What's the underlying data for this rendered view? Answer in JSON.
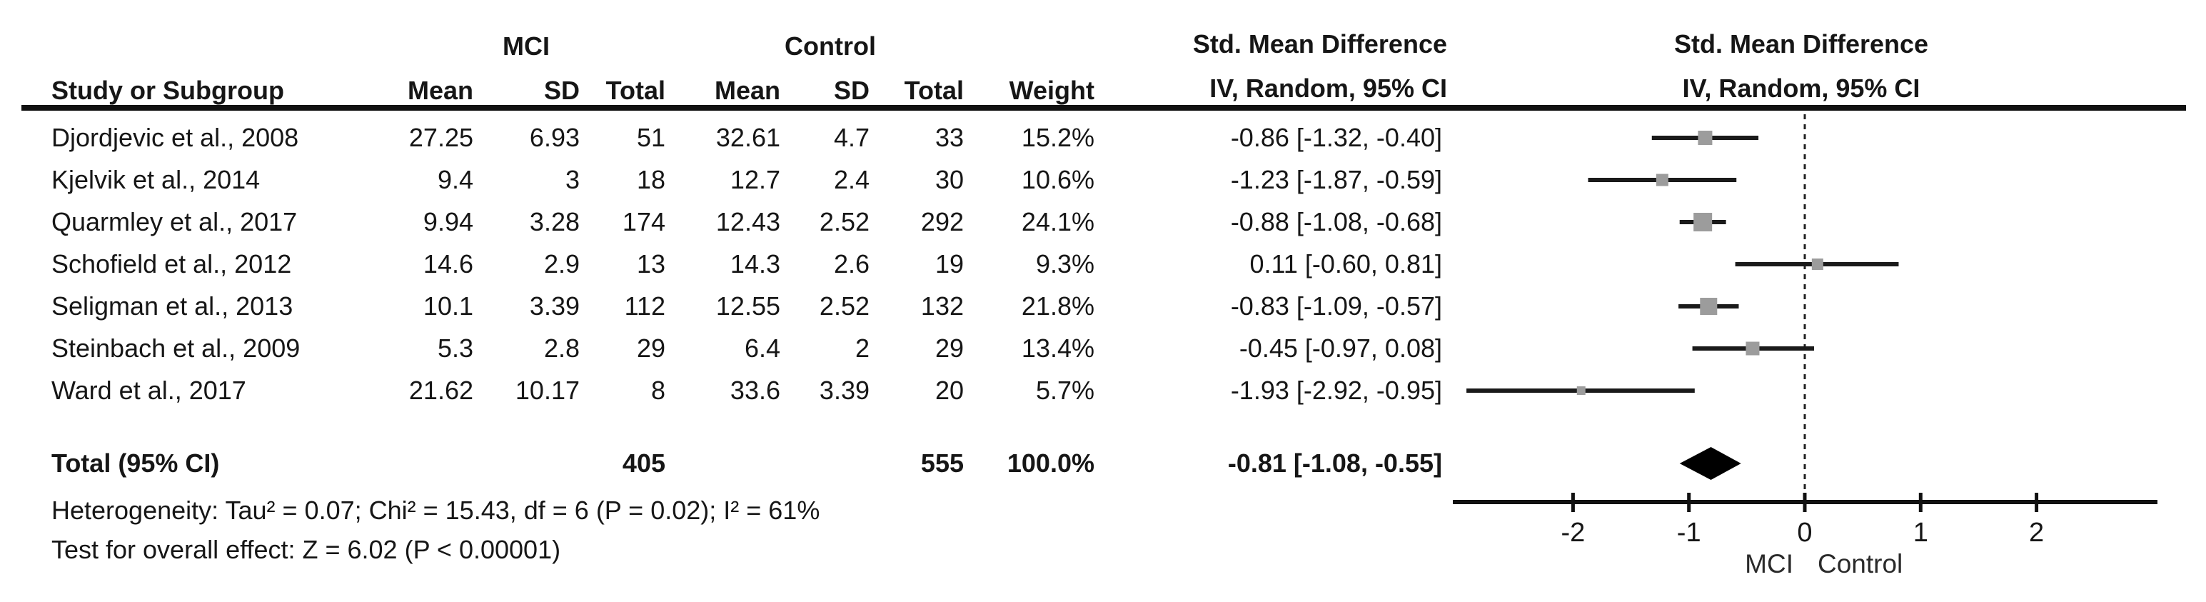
{
  "header": {
    "group_mci": "MCI",
    "group_control": "Control",
    "smd_line1": "Std. Mean Difference",
    "smd_line2": "IV, Random, 95% CI",
    "col_study": "Study or Subgroup",
    "col_mean": "Mean",
    "col_sd": "SD",
    "col_total": "Total",
    "col_weight": "Weight"
  },
  "chart_data": {
    "type": "forest",
    "effect_measure": "Std. Mean Difference",
    "method": "IV, Random, 95% CI",
    "studies": [
      {
        "name": "Djordjevic et al., 2008",
        "mci_mean": "27.25",
        "mci_sd": "6.93",
        "mci_total": "51",
        "ctl_mean": "32.61",
        "ctl_sd": "4.7",
        "ctl_total": "33",
        "weight": "15.2%",
        "est": -0.86,
        "ci_lo": -1.32,
        "ci_hi": -0.4,
        "ci_text": "-0.86 [-1.32, -0.40]"
      },
      {
        "name": "Kjelvik et al., 2014",
        "mci_mean": "9.4",
        "mci_sd": "3",
        "mci_total": "18",
        "ctl_mean": "12.7",
        "ctl_sd": "2.4",
        "ctl_total": "30",
        "weight": "10.6%",
        "est": -1.23,
        "ci_lo": -1.87,
        "ci_hi": -0.59,
        "ci_text": "-1.23 [-1.87, -0.59]"
      },
      {
        "name": "Quarmley et al., 2017",
        "mci_mean": "9.94",
        "mci_sd": "3.28",
        "mci_total": "174",
        "ctl_mean": "12.43",
        "ctl_sd": "2.52",
        "ctl_total": "292",
        "weight": "24.1%",
        "est": -0.88,
        "ci_lo": -1.08,
        "ci_hi": -0.68,
        "ci_text": "-0.88 [-1.08, -0.68]"
      },
      {
        "name": "Schofield et al., 2012",
        "mci_mean": "14.6",
        "mci_sd": "2.9",
        "mci_total": "13",
        "ctl_mean": "14.3",
        "ctl_sd": "2.6",
        "ctl_total": "19",
        "weight": "9.3%",
        "est": 0.11,
        "ci_lo": -0.6,
        "ci_hi": 0.81,
        "ci_text": "0.11 [-0.60, 0.81]"
      },
      {
        "name": "Seligman et al., 2013",
        "mci_mean": "10.1",
        "mci_sd": "3.39",
        "mci_total": "112",
        "ctl_mean": "12.55",
        "ctl_sd": "2.52",
        "ctl_total": "132",
        "weight": "21.8%",
        "est": -0.83,
        "ci_lo": -1.09,
        "ci_hi": -0.57,
        "ci_text": "-0.83 [-1.09, -0.57]"
      },
      {
        "name": "Steinbach et al., 2009",
        "mci_mean": "5.3",
        "mci_sd": "2.8",
        "mci_total": "29",
        "ctl_mean": "6.4",
        "ctl_sd": "2",
        "ctl_total": "29",
        "weight": "13.4%",
        "est": -0.45,
        "ci_lo": -0.97,
        "ci_hi": 0.08,
        "ci_text": "-0.45 [-0.97, 0.08]"
      },
      {
        "name": "Ward et al., 2017",
        "mci_mean": "21.62",
        "mci_sd": "10.17",
        "mci_total": "8",
        "ctl_mean": "33.6",
        "ctl_sd": "3.39",
        "ctl_total": "20",
        "weight": "5.7%",
        "est": -1.93,
        "ci_lo": -2.92,
        "ci_hi": -0.95,
        "ci_text": "-1.93 [-2.92, -0.95]"
      }
    ],
    "total": {
      "label": "Total (95% CI)",
      "mci_total": "405",
      "ctl_total": "555",
      "weight": "100.0%",
      "est": -0.81,
      "ci_lo": -1.08,
      "ci_hi": -0.55,
      "ci_text": "-0.81 [-1.08, -0.55]"
    },
    "heterogeneity": "Heterogeneity: Tau² = 0.07; Chi² = 15.43, df = 6 (P = 0.02); I² = 61%",
    "overall_effect": "Test for overall effect: Z = 6.02 (P < 0.00001)",
    "axis": {
      "ticks": [
        "-2",
        "-1",
        "0",
        "1",
        "2"
      ],
      "tick_values": [
        -2,
        -1,
        0,
        1,
        2
      ],
      "xlim": [
        -3.04,
        3.04
      ],
      "left_label": "MCI",
      "right_label": "Control"
    },
    "colors": {
      "square": "#9c9c9c",
      "line": "#1a1a1a",
      "diamond": "#000000"
    }
  }
}
